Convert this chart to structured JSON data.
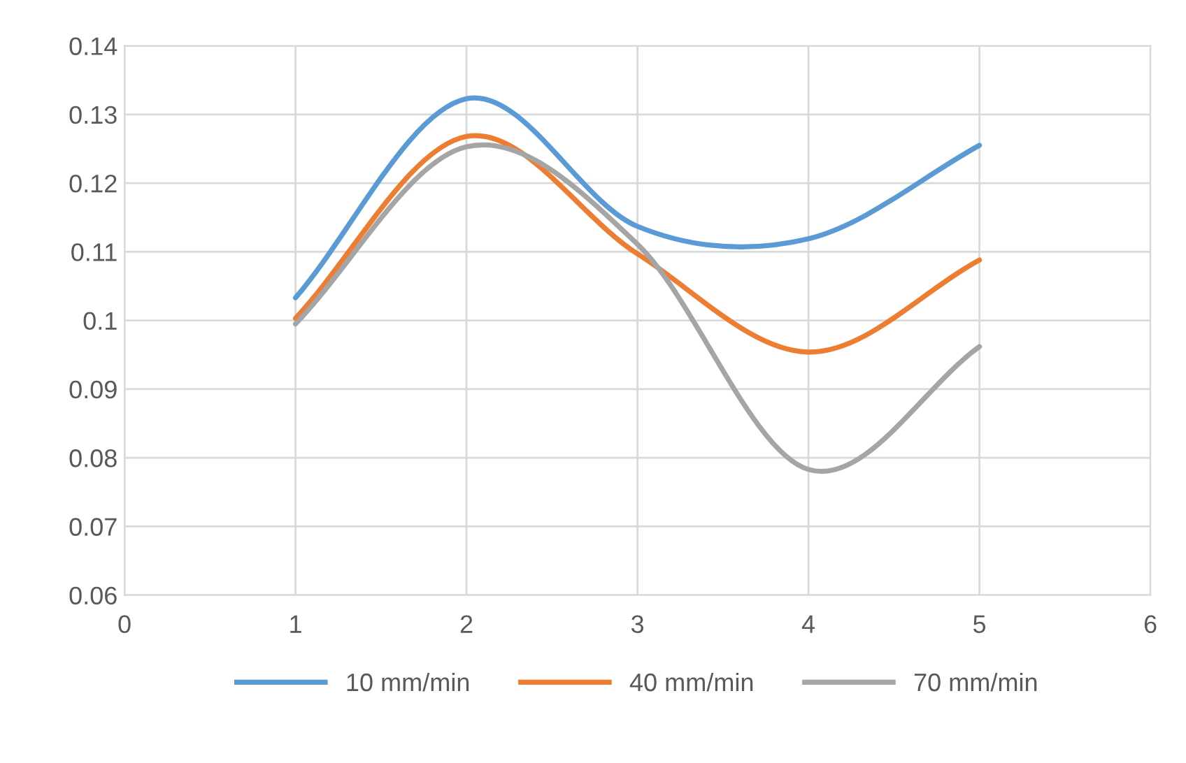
{
  "chart_data": {
    "type": "line",
    "x": [
      1,
      2,
      3,
      4,
      5
    ],
    "series": [
      {
        "name": "10 mm/min",
        "color": "#5b9bd5",
        "values": [
          0.1033,
          0.1323,
          0.1137,
          0.1119,
          0.1255
        ]
      },
      {
        "name": "40 mm/min",
        "color": "#ed7d31",
        "values": [
          0.1003,
          0.1268,
          0.1097,
          0.0954,
          0.1088
        ]
      },
      {
        "name": "70 mm/min",
        "color": "#a5a5a5",
        "values": [
          0.0995,
          0.1253,
          0.1111,
          0.0783,
          0.0962
        ]
      }
    ],
    "xlim": [
      0,
      6
    ],
    "xticks": [
      0,
      1,
      2,
      3,
      4,
      5,
      6
    ],
    "ylim": [
      0.06,
      0.14
    ],
    "yticks": [
      {
        "value": 0.06,
        "label": "0.06"
      },
      {
        "value": 0.07,
        "label": "0.07"
      },
      {
        "value": 0.08,
        "label": "0.08"
      },
      {
        "value": 0.09,
        "label": "0.09"
      },
      {
        "value": 0.1,
        "label": "0.1"
      },
      {
        "value": 0.11,
        "label": "0.11"
      },
      {
        "value": 0.12,
        "label": "0.12"
      },
      {
        "value": 0.13,
        "label": "0.13"
      },
      {
        "value": 0.14,
        "label": "0.14"
      }
    ],
    "grid": true,
    "legend": "bottom",
    "marker": "none",
    "line_style": "solid"
  }
}
